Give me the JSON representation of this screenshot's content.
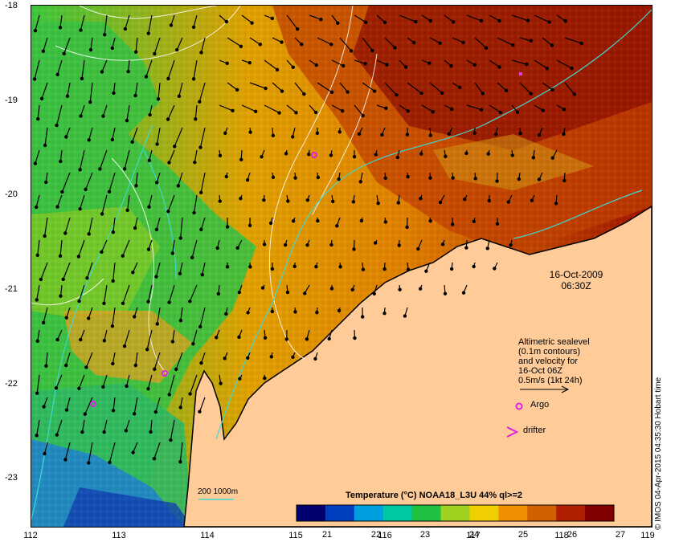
{
  "map": {
    "lat_ticks": [
      "-18",
      "-19",
      "-20",
      "-21",
      "-22",
      "-23"
    ],
    "lon_ticks": [
      "112",
      "113",
      "114",
      "115",
      "116",
      "117",
      "118",
      "119"
    ]
  },
  "annotations": {
    "date": "16-Oct-2009",
    "time": "06:30Z"
  },
  "legend": {
    "lines": [
      "Altimetric sealevel",
      "(0.1m contours)",
      "and velocity for",
      "16-Oct 06Z",
      "0.5m/s (1kt 24h)"
    ],
    "argo_label": "Argo",
    "drifter_label": "drifter",
    "contour_label": "200  1000m"
  },
  "colorbar": {
    "title": "Temperature (°C) NOAA18_L3U 44% ql>=2",
    "ticks": [
      "21",
      "22",
      "23",
      "24",
      "25",
      "26",
      "27"
    ],
    "colors": [
      "#00006e",
      "#0040c0",
      "#00a0e0",
      "#00c8a0",
      "#20c040",
      "#a0d020",
      "#f0d000",
      "#f09000",
      "#d06000",
      "#b02000",
      "#800000"
    ]
  },
  "credit": "© IMOS 04-Apr-2015 04:35:30 Hobart time"
}
